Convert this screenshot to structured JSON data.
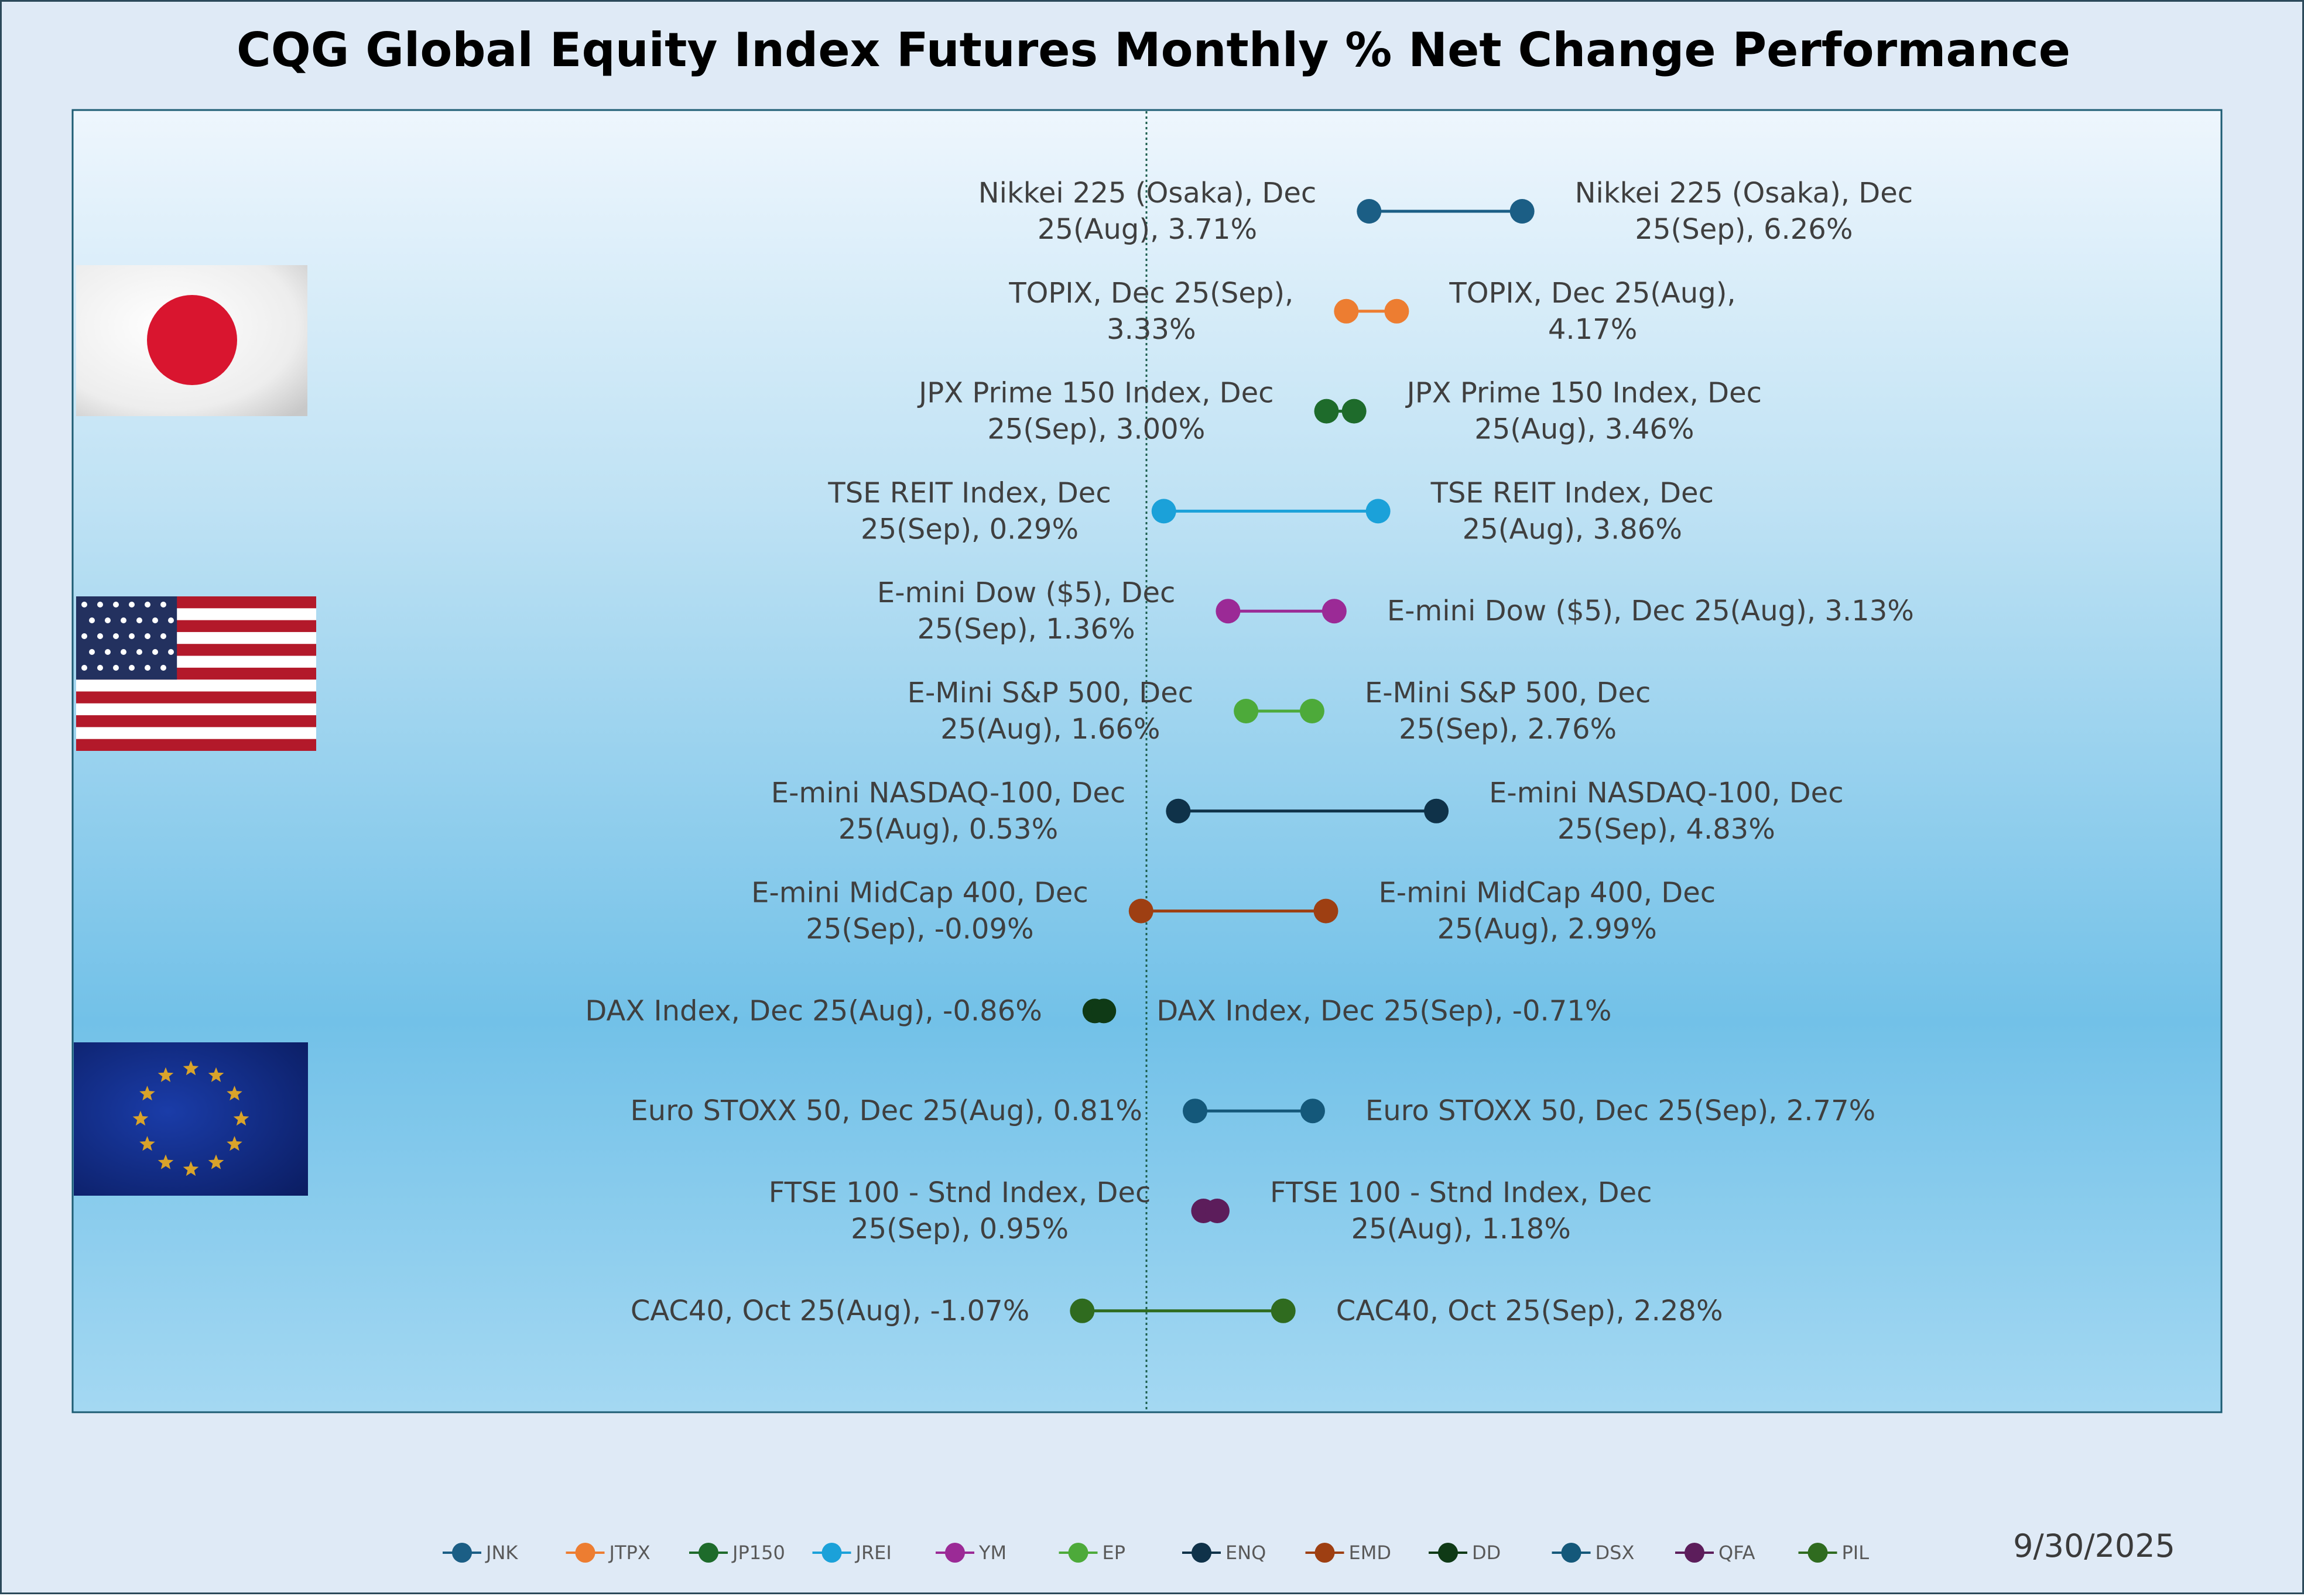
{
  "chart_data": {
    "type": "dumbbell",
    "title": "CQG Global Equity Index Futures Monthly % Net Change Performance",
    "date": "9/30/2025",
    "xlabel": "",
    "ylabel": "",
    "xlim": [
      -2.5,
      7.5
    ],
    "zero_line": 0,
    "flags": [
      {
        "country": "japan",
        "rows": [
          0,
          3
        ]
      },
      {
        "country": "usa",
        "rows": [
          4,
          7
        ]
      },
      {
        "country": "eu",
        "rows": [
          8,
          11
        ]
      }
    ],
    "series": [
      {
        "symbol": "JNK",
        "color": "#1b5e85",
        "left": {
          "value": 3.71,
          "label_lines": [
            "Nikkei 225 (Osaka), Dec",
            "25(Aug), 3.71%"
          ]
        },
        "right": {
          "value": 6.26,
          "label_lines": [
            "Nikkei 225 (Osaka), Dec",
            "25(Sep), 6.26%"
          ]
        }
      },
      {
        "symbol": "JTPX",
        "color": "#ed7d31",
        "left": {
          "value": 3.33,
          "label_lines": [
            "TOPIX, Dec 25(Sep),",
            "3.33%"
          ]
        },
        "right": {
          "value": 4.17,
          "label_lines": [
            "TOPIX, Dec 25(Aug),",
            "4.17%"
          ]
        }
      },
      {
        "symbol": "JP150",
        "color": "#1e6b2b",
        "left": {
          "value": 3.0,
          "label_lines": [
            "JPX Prime 150 Index, Dec",
            "25(Sep), 3.00%"
          ]
        },
        "right": {
          "value": 3.46,
          "label_lines": [
            "JPX Prime 150 Index, Dec",
            "25(Aug), 3.46%"
          ]
        }
      },
      {
        "symbol": "JREI",
        "color": "#1ba1d9",
        "left": {
          "value": 0.29,
          "label_lines": [
            "TSE REIT Index, Dec",
            "25(Sep), 0.29%"
          ]
        },
        "right": {
          "value": 3.86,
          "label_lines": [
            "TSE REIT Index, Dec",
            "25(Aug), 3.86%"
          ]
        }
      },
      {
        "symbol": "YM",
        "color": "#9b2a96",
        "left": {
          "value": 1.36,
          "label_lines": [
            "E-mini Dow ($5), Dec",
            "25(Sep), 1.36%"
          ]
        },
        "right": {
          "value": 3.13,
          "label_lines": [
            "E-mini Dow ($5), Dec 25(Aug), 3.13%"
          ]
        }
      },
      {
        "symbol": "EP",
        "color": "#4daa3a",
        "left": {
          "value": 1.66,
          "label_lines": [
            "E-Mini S&P 500, Dec",
            "25(Aug), 1.66%"
          ]
        },
        "right": {
          "value": 2.76,
          "label_lines": [
            "E-Mini S&P 500, Dec",
            "25(Sep), 2.76%"
          ]
        }
      },
      {
        "symbol": "ENQ",
        "color": "#0f3249",
        "left": {
          "value": 0.53,
          "label_lines": [
            "E-mini NASDAQ-100, Dec",
            "25(Aug), 0.53%"
          ]
        },
        "right": {
          "value": 4.83,
          "label_lines": [
            "E-mini NASDAQ-100, Dec",
            "25(Sep), 4.83%"
          ]
        }
      },
      {
        "symbol": "EMD",
        "color": "#9e3f12",
        "left": {
          "value": -0.09,
          "label_lines": [
            "E-mini MidCap 400, Dec",
            "25(Sep), -0.09%"
          ]
        },
        "right": {
          "value": 2.99,
          "label_lines": [
            "E-mini MidCap 400, Dec",
            "25(Aug), 2.99%"
          ]
        }
      },
      {
        "symbol": "DD",
        "color": "#0f3a16",
        "left": {
          "value": -0.86,
          "label_lines": [
            "DAX Index, Dec 25(Aug), -0.86%"
          ]
        },
        "right": {
          "value": -0.71,
          "label_lines": [
            "DAX Index, Dec 25(Sep), -0.71%"
          ]
        }
      },
      {
        "symbol": "DSX",
        "color": "#14587a",
        "left": {
          "value": 0.81,
          "label_lines": [
            "Euro STOXX 50, Dec 25(Aug), 0.81%"
          ]
        },
        "right": {
          "value": 2.77,
          "label_lines": [
            "Euro STOXX 50, Dec 25(Sep), 2.77%"
          ]
        }
      },
      {
        "symbol": "QFA",
        "color": "#5c1d5b",
        "left": {
          "value": 0.95,
          "label_lines": [
            "FTSE 100 - Stnd Index, Dec",
            "25(Sep), 0.95%"
          ]
        },
        "right": {
          "value": 1.18,
          "label_lines": [
            "FTSE 100 - Stnd Index, Dec",
            "25(Aug), 1.18%"
          ]
        }
      },
      {
        "symbol": "PIL",
        "color": "#2f6b1f",
        "left": {
          "value": -1.07,
          "label_lines": [
            "CAC40, Oct 25(Aug), -1.07%"
          ]
        },
        "right": {
          "value": 2.28,
          "label_lines": [
            "CAC40, Oct 25(Sep), 2.28%"
          ]
        }
      }
    ]
  }
}
